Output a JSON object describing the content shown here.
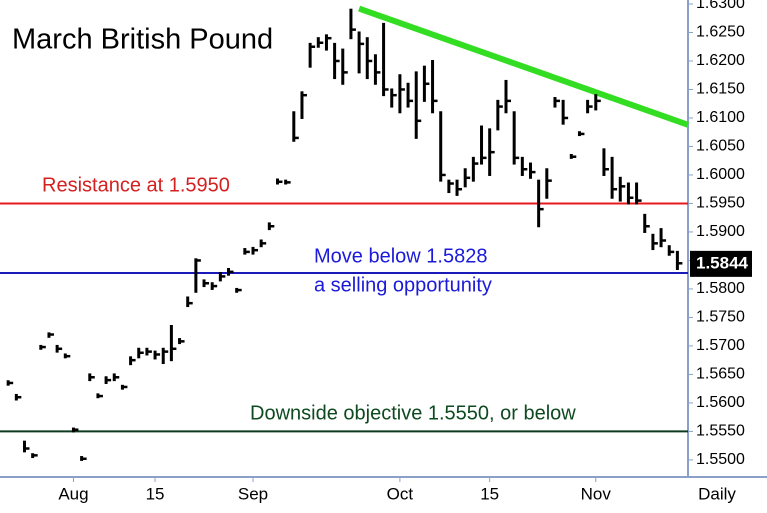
{
  "chart_data": {
    "type": "ohlc",
    "title": "March British Pound",
    "x_label": "Daily",
    "last_price": 1.5844,
    "ylim": [
      1.547,
      1.6307
    ],
    "xlim": [
      -1,
      83.3
    ],
    "yticks": [
      {
        "value": 1.55,
        "label": "1.5500"
      },
      {
        "value": 1.555,
        "label": "1.5550"
      },
      {
        "value": 1.56,
        "label": "1.5600"
      },
      {
        "value": 1.565,
        "label": "1.5650"
      },
      {
        "value": 1.57,
        "label": "1.5700"
      },
      {
        "value": 1.575,
        "label": "1.5750"
      },
      {
        "value": 1.58,
        "label": "1.5800"
      },
      {
        "value": 1.585,
        "label": "1.5850"
      },
      {
        "value": 1.59,
        "label": "1.5900"
      },
      {
        "value": 1.595,
        "label": "1.5950"
      },
      {
        "value": 1.6,
        "label": "1.6000"
      },
      {
        "value": 1.605,
        "label": "1.6050"
      },
      {
        "value": 1.61,
        "label": "1.6100"
      },
      {
        "value": 1.615,
        "label": "1.6150"
      },
      {
        "value": 1.62,
        "label": "1.6200"
      },
      {
        "value": 1.625,
        "label": "1.6250"
      },
      {
        "value": 1.63,
        "label": "1.6300"
      }
    ],
    "xticks": [
      {
        "value": 8,
        "label": "Aug"
      },
      {
        "value": 18,
        "label": "15"
      },
      {
        "value": 30,
        "label": "Sep"
      },
      {
        "value": 48,
        "label": "Oct"
      },
      {
        "value": 59,
        "label": "15"
      },
      {
        "value": 72,
        "label": "Nov"
      }
    ],
    "color": "#000000",
    "high": [
      1.5638,
      1.5614,
      1.5532,
      1.551,
      1.57,
      1.5722,
      1.57,
      1.5685,
      1.5555,
      1.5505,
      1.565,
      1.5615,
      1.5645,
      1.565,
      1.563,
      1.568,
      1.5695,
      1.5695,
      1.569,
      1.5695,
      1.5735,
      1.5712,
      1.5785,
      1.5852,
      1.5815,
      1.581,
      1.5828,
      1.5835,
      1.58,
      1.587,
      1.5872,
      1.5885,
      1.5915,
      1.5992,
      1.599,
      1.611,
      1.6145,
      1.623,
      1.624,
      1.6245,
      1.623,
      1.622,
      1.629,
      1.625,
      1.624,
      1.621,
      1.6265,
      1.615,
      1.6175,
      1.616,
      1.618,
      1.619,
      1.62,
      1.611,
      1.599,
      1.599,
      1.601,
      1.603,
      1.6085,
      1.608,
      1.613,
      1.6165,
      1.611,
      1.603,
      1.602,
      1.599,
      1.601,
      1.6135,
      1.613,
      1.6035,
      1.6075,
      1.613,
      1.614,
      1.6045,
      1.603,
      1.5995,
      1.5985,
      1.5985,
      1.593,
      1.5895,
      1.5905,
      1.5875,
      1.5865
    ],
    "low": [
      1.5632,
      1.5606,
      1.5515,
      1.5505,
      1.5695,
      1.5716,
      1.569,
      1.568,
      1.555,
      1.55,
      1.564,
      1.561,
      1.5635,
      1.564,
      1.5625,
      1.5668,
      1.568,
      1.5685,
      1.5678,
      1.567,
      1.5675,
      1.5705,
      1.577,
      1.5795,
      1.5805,
      1.58,
      1.5815,
      1.5825,
      1.5795,
      1.5862,
      1.5862,
      1.5875,
      1.5905,
      1.5985,
      1.5985,
      1.606,
      1.61,
      1.619,
      1.6225,
      1.622,
      1.617,
      1.616,
      1.624,
      1.618,
      1.617,
      1.616,
      1.614,
      1.612,
      1.611,
      1.612,
      1.6065,
      1.613,
      1.611,
      1.599,
      1.597,
      1.5965,
      1.598,
      1.599,
      1.602,
      1.6,
      1.608,
      1.611,
      1.602,
      1.6,
      1.5995,
      1.591,
      1.596,
      1.612,
      1.609,
      1.603,
      1.607,
      1.611,
      1.6115,
      1.6,
      1.596,
      1.5955,
      1.595,
      1.595,
      1.59,
      1.587,
      1.5875,
      1.586,
      1.5835
    ],
    "close": [
      1.5635,
      1.561,
      1.552,
      1.5508,
      1.5698,
      1.572,
      1.5695,
      1.5682,
      1.5553,
      1.5502,
      1.5645,
      1.5612,
      1.564,
      1.5645,
      1.5628,
      1.5675,
      1.5688,
      1.569,
      1.5685,
      1.569,
      1.5695,
      1.5708,
      1.5775,
      1.585,
      1.581,
      1.5805,
      1.5822,
      1.583,
      1.5798,
      1.5865,
      1.5868,
      1.588,
      1.591,
      1.5988,
      1.5987,
      1.6065,
      1.614,
      1.6225,
      1.6232,
      1.624,
      1.62,
      1.618,
      1.6255,
      1.623,
      1.62,
      1.618,
      1.615,
      1.614,
      1.615,
      1.613,
      1.6095,
      1.616,
      1.613,
      1.6,
      1.5985,
      1.5975,
      1.5995,
      1.602,
      1.603,
      1.604,
      1.612,
      1.613,
      1.603,
      1.601,
      1.6005,
      1.594,
      1.599,
      1.613,
      1.61,
      1.6032,
      1.6072,
      1.612,
      1.613,
      1.601,
      1.5975,
      1.598,
      1.596,
      1.5955,
      1.591,
      1.588,
      1.5885,
      1.5865,
      1.5845
    ],
    "hlines": [
      {
        "value": 1.595,
        "color": "#e8191e",
        "label": [
          "Resistance at 1.5950"
        ],
        "text_color": "#d42020"
      },
      {
        "value": 1.5828,
        "color": "#1a1ab8",
        "label": [
          "Move below 1.5828",
          "a selling opportunity"
        ],
        "text_color": "#1a1ad8"
      },
      {
        "value": 1.555,
        "color": "#0c3a1e",
        "label": [
          "Downside objective 1.5550, or below"
        ],
        "text_color": "#0e4a20"
      }
    ],
    "trendline": {
      "color": "#33dd22",
      "x": [
        43,
        83.3
      ],
      "y": [
        1.6292,
        1.6088
      ]
    }
  }
}
